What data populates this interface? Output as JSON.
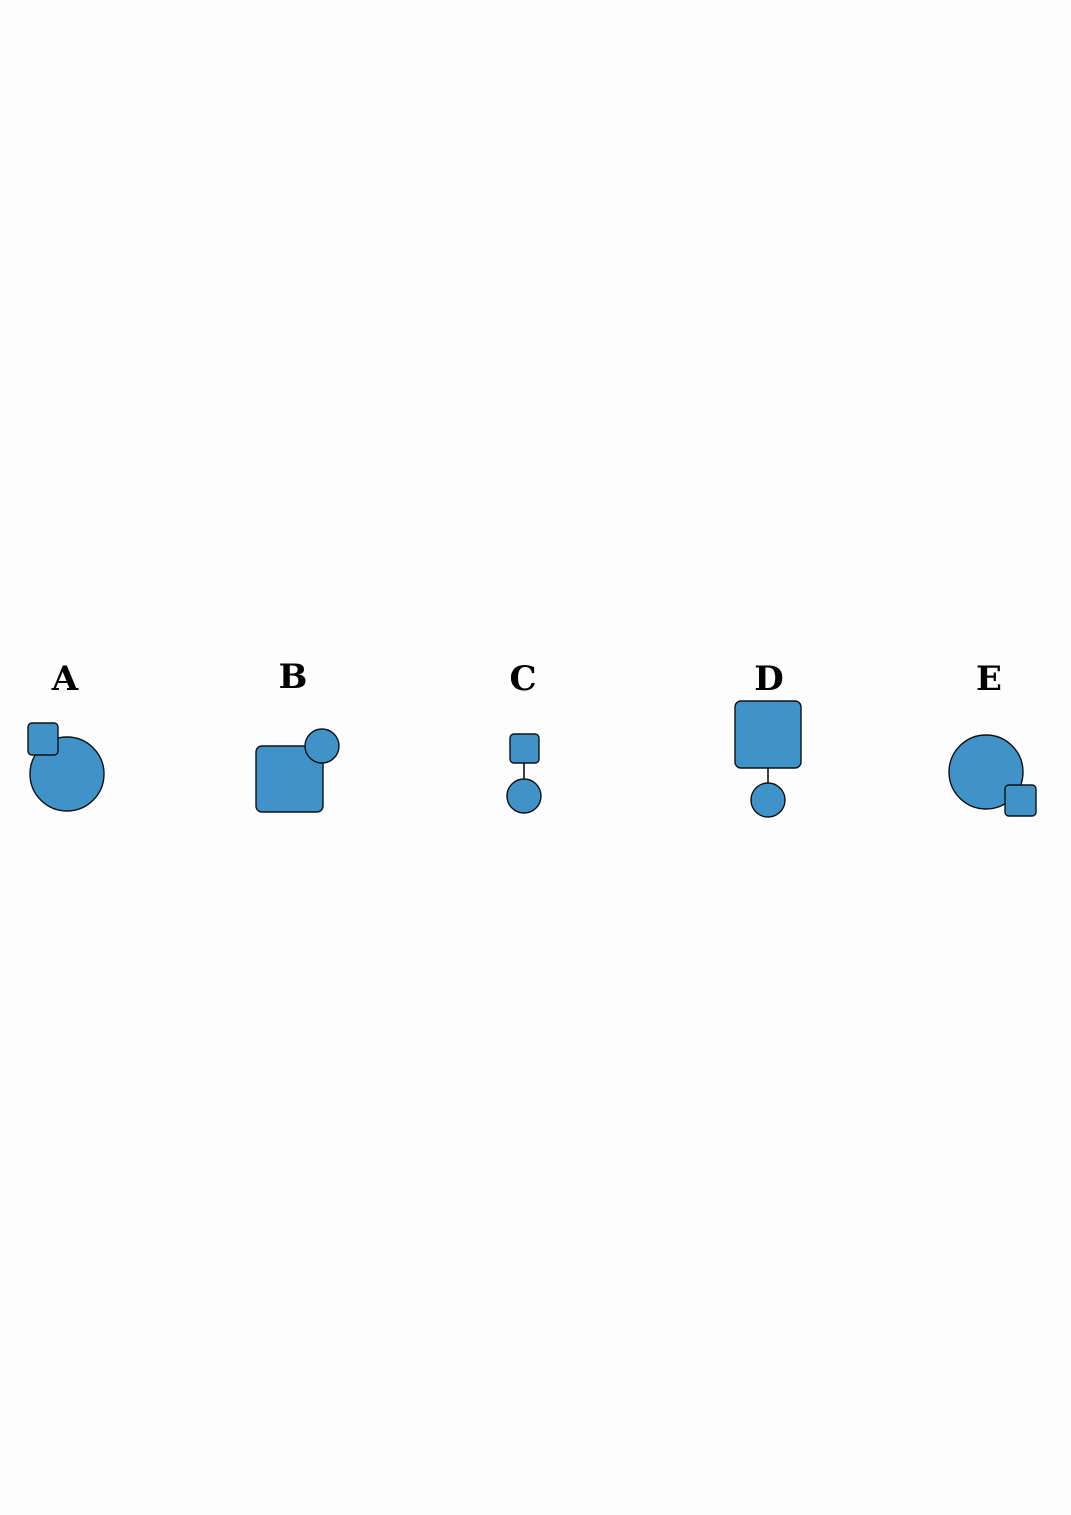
{
  "colors": {
    "fill": "#3f93c8",
    "stroke": "#111111",
    "label": "#000000"
  },
  "options": [
    {
      "label": "A"
    },
    {
      "label": "B"
    },
    {
      "label": "C"
    },
    {
      "label": "D"
    },
    {
      "label": "E"
    }
  ]
}
